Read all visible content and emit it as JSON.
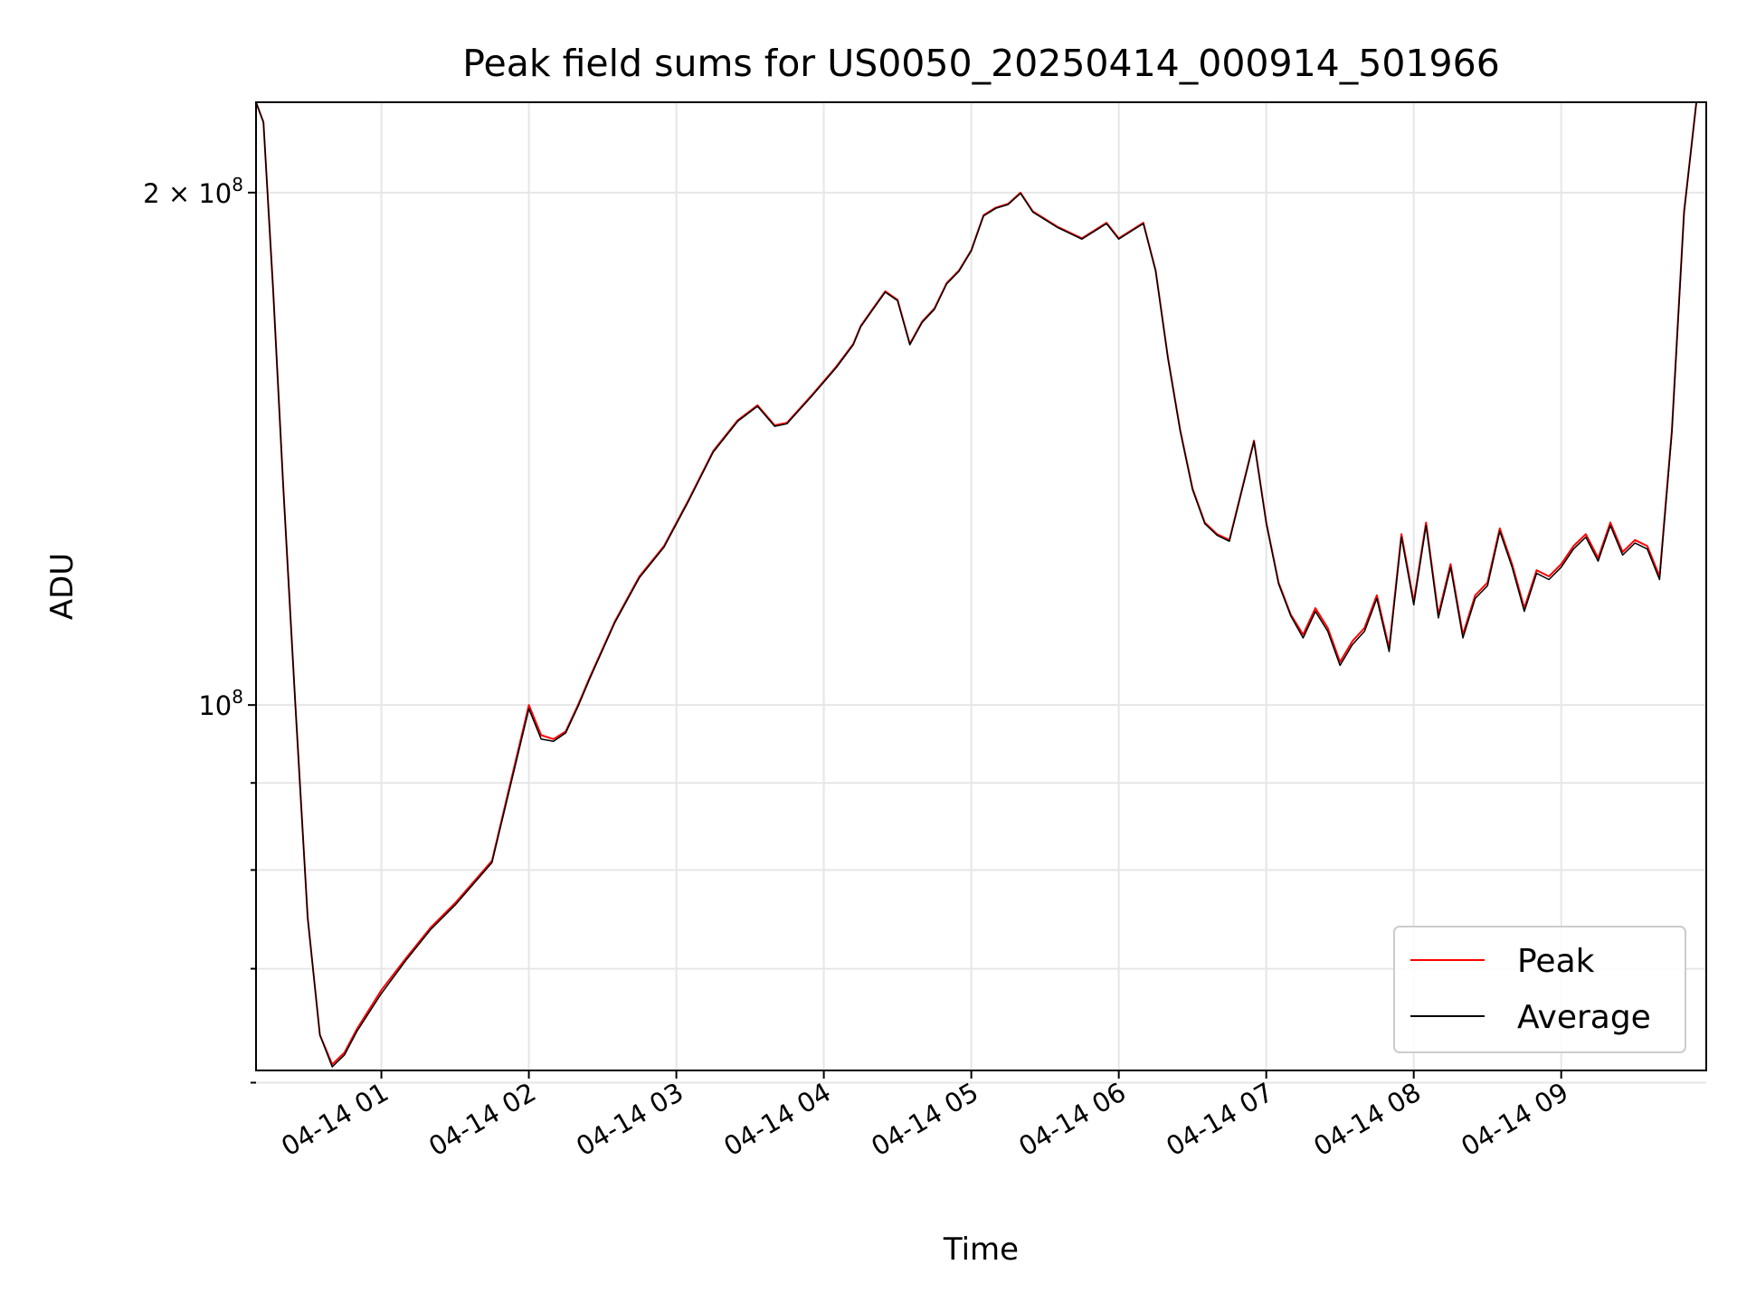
{
  "chart_data": {
    "type": "line",
    "title": "Peak field sums for US0050_20250414_000914_501966",
    "xlabel": "Time",
    "ylabel": "ADU",
    "y_scale": "log",
    "grid": true,
    "legend_placement": "lower-right",
    "xlim": [
      "2025-04-14 00:09",
      "2025-04-14 09:59"
    ],
    "ylim": [
      61000000,
      226000000
    ],
    "x_ticks": [
      {
        "value": "2025-04-14 01:00",
        "label": "04-14 01"
      },
      {
        "value": "2025-04-14 02:00",
        "label": "04-14 02"
      },
      {
        "value": "2025-04-14 03:00",
        "label": "04-14 03"
      },
      {
        "value": "2025-04-14 04:00",
        "label": "04-14 04"
      },
      {
        "value": "2025-04-14 05:00",
        "label": "04-14 05"
      },
      {
        "value": "2025-04-14 06:00",
        "label": "04-14 06"
      },
      {
        "value": "2025-04-14 07:00",
        "label": "04-14 07"
      },
      {
        "value": "2025-04-14 08:00",
        "label": "04-14 08"
      },
      {
        "value": "2025-04-14 09:00",
        "label": "04-14 09"
      }
    ],
    "y_major_ticks": [
      {
        "value": 100000000,
        "base": "10",
        "exp": "8",
        "mult": ""
      },
      {
        "value": 200000000,
        "base": "10",
        "exp": "8",
        "mult": "2 × "
      }
    ],
    "y_minor_ticks": [
      60000000,
      70000000,
      80000000,
      90000000
    ],
    "x": [
      "2025-04-14 00:09",
      "2025-04-14 00:12",
      "2025-04-14 00:16",
      "2025-04-14 00:20",
      "2025-04-14 00:25",
      "2025-04-14 00:30",
      "2025-04-14 00:35",
      "2025-04-14 00:40",
      "2025-04-14 00:45",
      "2025-04-14 00:50",
      "2025-04-14 01:00",
      "2025-04-14 01:10",
      "2025-04-14 01:20",
      "2025-04-14 01:30",
      "2025-04-14 01:45",
      "2025-04-14 02:00",
      "2025-04-14 02:05",
      "2025-04-14 02:10",
      "2025-04-14 02:15",
      "2025-04-14 02:20",
      "2025-04-14 02:25",
      "2025-04-14 02:35",
      "2025-04-14 02:45",
      "2025-04-14 02:55",
      "2025-04-14 03:05",
      "2025-04-14 03:15",
      "2025-04-14 03:25",
      "2025-04-14 03:33",
      "2025-04-14 03:40",
      "2025-04-14 03:45",
      "2025-04-14 03:55",
      "2025-04-14 04:05",
      "2025-04-14 04:12",
      "2025-04-14 04:15",
      "2025-04-14 04:20",
      "2025-04-14 04:25",
      "2025-04-14 04:30",
      "2025-04-14 04:35",
      "2025-04-14 04:40",
      "2025-04-14 04:45",
      "2025-04-14 04:50",
      "2025-04-14 04:55",
      "2025-04-14 05:00",
      "2025-04-14 05:05",
      "2025-04-14 05:10",
      "2025-04-14 05:15",
      "2025-04-14 05:20",
      "2025-04-14 05:25",
      "2025-04-14 05:35",
      "2025-04-14 05:45",
      "2025-04-14 05:55",
      "2025-04-14 06:00",
      "2025-04-14 06:05",
      "2025-04-14 06:10",
      "2025-04-14 06:15",
      "2025-04-14 06:20",
      "2025-04-14 06:25",
      "2025-04-14 06:30",
      "2025-04-14 06:35",
      "2025-04-14 06:40",
      "2025-04-14 06:45",
      "2025-04-14 06:55",
      "2025-04-14 07:00",
      "2025-04-14 07:05",
      "2025-04-14 07:10",
      "2025-04-14 07:15",
      "2025-04-14 07:20",
      "2025-04-14 07:25",
      "2025-04-14 07:30",
      "2025-04-14 07:35",
      "2025-04-14 07:40",
      "2025-04-14 07:45",
      "2025-04-14 07:50",
      "2025-04-14 07:55",
      "2025-04-14 08:00",
      "2025-04-14 08:05",
      "2025-04-14 08:10",
      "2025-04-14 08:15",
      "2025-04-14 08:20",
      "2025-04-14 08:25",
      "2025-04-14 08:30",
      "2025-04-14 08:35",
      "2025-04-14 08:40",
      "2025-04-14 08:45",
      "2025-04-14 08:50",
      "2025-04-14 08:55",
      "2025-04-14 09:00",
      "2025-04-14 09:05",
      "2025-04-14 09:10",
      "2025-04-14 09:15",
      "2025-04-14 09:20",
      "2025-04-14 09:25",
      "2025-04-14 09:30",
      "2025-04-14 09:35",
      "2025-04-14 09:40",
      "2025-04-14 09:45",
      "2025-04-14 09:50",
      "2025-04-14 09:55",
      "2025-04-14 09:59"
    ],
    "series": [
      {
        "name": "Peak",
        "color": "#ff0000",
        "values": [
          226000000,
          220000000,
          175000000,
          135000000,
          100000000,
          75000000,
          64000000,
          61500000,
          62500000,
          64500000,
          68000000,
          71000000,
          74000000,
          76500000,
          81000000,
          100000000,
          96000000,
          95500000,
          96500000,
          100000000,
          104000000,
          112000000,
          119000000,
          124000000,
          132000000,
          141000000,
          147000000,
          150000000,
          146000000,
          146500000,
          152000000,
          158000000,
          163000000,
          167000000,
          171000000,
          175000000,
          173000000,
          163000000,
          168000000,
          171000000,
          177000000,
          180000000,
          185000000,
          194000000,
          196000000,
          197000000,
          200000000,
          195000000,
          191000000,
          188000000,
          192000000,
          188000000,
          190000000,
          192000000,
          180000000,
          160000000,
          145000000,
          134000000,
          128000000,
          126000000,
          125000000,
          143000000,
          128000000,
          118000000,
          113000000,
          110000000,
          114000000,
          111000000,
          106000000,
          109000000,
          111000000,
          116000000,
          108000000,
          126000000,
          115000000,
          128000000,
          113000000,
          121000000,
          110000000,
          116000000,
          118000000,
          127000000,
          121000000,
          114000000,
          120000000,
          119000000,
          121000000,
          124000000,
          126000000,
          122000000,
          128000000,
          123000000,
          125000000,
          124000000,
          119000000,
          145000000,
          195000000,
          226000000,
          226000000
        ]
      },
      {
        "name": "Average",
        "color": "#000000",
        "values": [
          226000000,
          220000000,
          175000000,
          135000000,
          100000000,
          75000000,
          64000000,
          61300000,
          62300000,
          64300000,
          67700000,
          70800000,
          73800000,
          76300000,
          80800000,
          99500000,
          95500000,
          95200000,
          96300000,
          99800000,
          103800000,
          111800000,
          118800000,
          123800000,
          131800000,
          140800000,
          146800000,
          149800000,
          145800000,
          146300000,
          151800000,
          157800000,
          162800000,
          166800000,
          170800000,
          174800000,
          172800000,
          162800000,
          167800000,
          170800000,
          176800000,
          179800000,
          184800000,
          193800000,
          195800000,
          196800000,
          199800000,
          194800000,
          190800000,
          187800000,
          191800000,
          187800000,
          189800000,
          191800000,
          179800000,
          159800000,
          144800000,
          133800000,
          127800000,
          125800000,
          124800000,
          142800000,
          127800000,
          117800000,
          112800000,
          109500000,
          113500000,
          110500000,
          105500000,
          108500000,
          110500000,
          115500000,
          107500000,
          125500000,
          114500000,
          127500000,
          112500000,
          120500000,
          109500000,
          115500000,
          117500000,
          126500000,
          120500000,
          113500000,
          119500000,
          118500000,
          120500000,
          123500000,
          125500000,
          121500000,
          127500000,
          122500000,
          124500000,
          123500000,
          118500000,
          144500000,
          194500000,
          226000000,
          226000000
        ]
      }
    ]
  }
}
